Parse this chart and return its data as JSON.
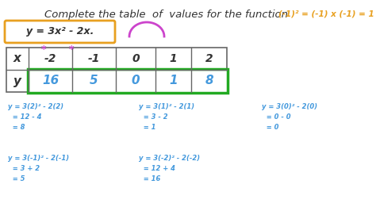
{
  "bg_color": "#ffffff",
  "title": "Complete the table  of  values for the function",
  "title_color": "#333333",
  "title_fontsize": 9.5,
  "equation": "y = 3x² - 2x.",
  "equation_color": "#333333",
  "equation_box_color": "#e8a020",
  "parabola_color": "#cc44cc",
  "corner_text": "(-1)² = (-1) x (-1) = 1",
  "corner_color": "#e8a020",
  "x_vals": [
    "-2",
    "-1",
    "0",
    "1",
    "2"
  ],
  "y_vals": [
    "16",
    "5",
    "0",
    "1",
    "8"
  ],
  "table_header_color": "#333333",
  "table_y_color": "#4499dd",
  "table_box_color": "#22aa22",
  "star_color": "#cc44cc",
  "workings_color": "#4499dd",
  "workings_fontsize": 6.0
}
